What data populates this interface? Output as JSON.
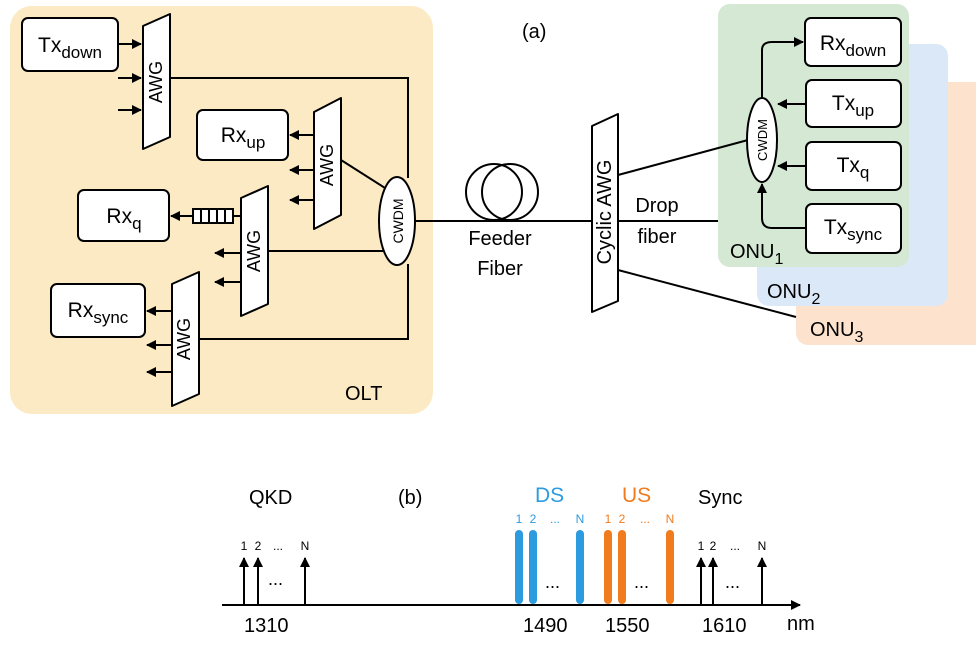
{
  "panel_a": {
    "label": "(a)",
    "olt": {
      "label": "OLT",
      "tx_down": {
        "base": "Tx",
        "sub": "down"
      },
      "rx_up": {
        "base": "Rx",
        "sub": "up"
      },
      "rx_q": {
        "base": "Rx",
        "sub": "q"
      },
      "rx_sync": {
        "base": "Rx",
        "sub": "sync"
      },
      "awg": "AWG",
      "cwdm": "CWDM"
    },
    "feeder": {
      "line1": "Feeder",
      "line2": "Fiber"
    },
    "cyclic_awg": "Cyclic AWG",
    "drop": {
      "line1": "Drop",
      "line2": "fiber"
    },
    "onu1": {
      "name": {
        "base": "ONU",
        "sub": "1"
      },
      "rx_down": {
        "base": "Rx",
        "sub": "down"
      },
      "tx_up": {
        "base": "Tx",
        "sub": "up"
      },
      "tx_q": {
        "base": "Tx",
        "sub": "q"
      },
      "tx_sync": {
        "base": "Tx",
        "sub": "sync"
      },
      "cwdm": "CWDM"
    },
    "onu2": {
      "base": "ONU",
      "sub": "2"
    },
    "onu3": {
      "base": "ONU",
      "sub": "3"
    }
  },
  "panel_b": {
    "label": "(b)",
    "groups": [
      {
        "name": "QKD",
        "channels": [
          "1",
          "2",
          "...",
          "N"
        ],
        "dots": "...",
        "color": "#000000"
      },
      {
        "name": "DS",
        "channels": [
          "1",
          "2",
          "...",
          "N"
        ],
        "dots": "...",
        "color": "#2d9be0"
      },
      {
        "name": "US",
        "channels": [
          "1",
          "2",
          "...",
          "N"
        ],
        "dots": "...",
        "color": "#f07c1e"
      },
      {
        "name": "Sync",
        "channels": [
          "1",
          "2",
          "...",
          "N"
        ],
        "dots": "...",
        "color": "#000000"
      }
    ],
    "ticks": [
      "1310",
      "1490",
      "1550",
      "1610"
    ],
    "unit": "nm"
  },
  "colors": {
    "olt_bg": "#fbeac4",
    "onu1_bg": "#d5e8d3",
    "onu2_bg": "#dae8f8",
    "onu3_bg": "#fde3cd",
    "ds": "#2d9be0",
    "us": "#f07c1e"
  }
}
